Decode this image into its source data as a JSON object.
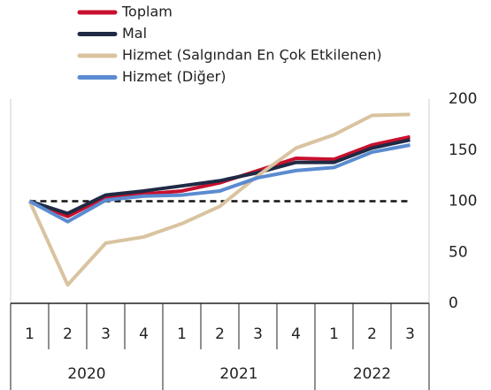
{
  "chart_data": {
    "type": "line",
    "categories": [
      "1",
      "2",
      "3",
      "4",
      "1",
      "2",
      "3",
      "4",
      "1",
      "2",
      "3"
    ],
    "groups": [
      {
        "label": "2020",
        "count": 4
      },
      {
        "label": "2021",
        "count": 4
      },
      {
        "label": "2022",
        "count": 3
      }
    ],
    "series": [
      {
        "name": "Toplam",
        "color": "#c8102e",
        "values": [
          100,
          85,
          104,
          107,
          110,
          118,
          130,
          142,
          141,
          155,
          163
        ]
      },
      {
        "name": "Mal",
        "color": "#1f2a44",
        "values": [
          100,
          88,
          106,
          110,
          115,
          120,
          128,
          138,
          138,
          152,
          160
        ]
      },
      {
        "name": "Hizmet (Salgından En Çok Etkilenen)",
        "color": "#d9c3a0",
        "values": [
          100,
          18,
          59,
          65,
          78,
          95,
          125,
          152,
          165,
          184,
          185
        ]
      },
      {
        "name": "Hizmet (Diğer)",
        "color": "#5b8bd0",
        "values": [
          100,
          80,
          101,
          105,
          106,
          110,
          123,
          130,
          133,
          148,
          155
        ]
      }
    ],
    "reference_line": 100,
    "ylim": [
      0,
      200
    ],
    "yticks": [
      0,
      50,
      100,
      150,
      200
    ],
    "y_axis_side": "right"
  }
}
